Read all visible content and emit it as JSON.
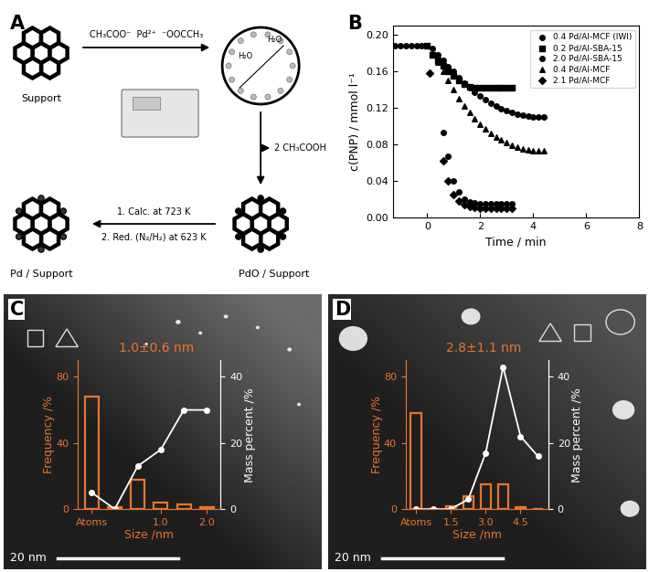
{
  "panel_labels": [
    "A",
    "B",
    "C",
    "D"
  ],
  "diagram": {
    "nodes": [
      "Support",
      "PdO / Support",
      "Pd / Support"
    ],
    "precursor": "CH₃COO⁻  Pd²⁺  ⁻OOCCH₃",
    "water": [
      "H₂O",
      "H₂O"
    ],
    "byproduct": "2 CH₃COOH",
    "steps": [
      "1. Calc. at 723 K",
      "2. Red. (N₂/H₂) at 623 K"
    ]
  },
  "chart_data": [
    {
      "type": "scatter",
      "x_label": "Time / min",
      "y_label": "c(PNP) / mmol l⁻¹",
      "xlim": [
        -1.3,
        8
      ],
      "xticks": [
        0,
        2,
        4,
        6,
        8
      ],
      "ylim": [
        0,
        0.21
      ],
      "yticks": [
        {
          "value": 0.0,
          "label": "0.00"
        },
        {
          "value": 0.04,
          "label": "0.04"
        },
        {
          "value": 0.08,
          "label": "0.08"
        },
        {
          "value": 0.12,
          "label": "0.12"
        },
        {
          "value": 0.16,
          "label": "0.16"
        },
        {
          "value": 0.2,
          "label": "0.20"
        }
      ],
      "legend": "upper right",
      "series": [
        {
          "name": "0.4 Pd/Al-MCF (IWI)",
          "color": "#000000",
          "marker": "circle",
          "x": [
            -1.2,
            -1.0,
            -0.8,
            -0.6,
            -0.4,
            -0.2,
            0.0,
            0.6,
            0.8,
            1.0,
            1.2,
            1.4,
            1.6,
            1.8,
            2.0,
            2.2,
            2.4,
            2.6,
            2.8,
            3.0,
            3.2
          ],
          "values": [
            0.188,
            0.188,
            0.188,
            0.188,
            0.188,
            0.188,
            0.188,
            0.093,
            0.067,
            0.04,
            0.028,
            0.02,
            0.017,
            0.016,
            0.015,
            0.015,
            0.015,
            0.015,
            0.015,
            0.015,
            0.015
          ]
        },
        {
          "name": "0.2 Pd/Al-SBA-15",
          "color": "#000000",
          "marker": "square",
          "x": [
            0.0,
            0.2,
            0.4,
            0.6,
            0.8,
            1.0,
            1.2,
            1.4,
            1.6,
            1.8,
            2.0,
            2.2,
            2.4,
            2.6,
            2.8,
            3.0,
            3.2
          ],
          "values": [
            0.188,
            0.178,
            0.172,
            0.166,
            0.16,
            0.155,
            0.15,
            0.146,
            0.143,
            0.142,
            0.142,
            0.142,
            0.142,
            0.142,
            0.142,
            0.142,
            0.142
          ]
        },
        {
          "name": "2.0 Pd/Al-SBA-15",
          "color": "#000000",
          "marker": "circle",
          "x": [
            0.2,
            0.4,
            0.6,
            0.8,
            1.0,
            1.2,
            1.4,
            1.6,
            1.8,
            2.0,
            2.2,
            2.4,
            2.6,
            2.8,
            3.0,
            3.2,
            3.4,
            3.6,
            3.8,
            4.0,
            4.2,
            4.4
          ],
          "values": [
            0.185,
            0.178,
            0.172,
            0.165,
            0.16,
            0.153,
            0.147,
            0.142,
            0.137,
            0.133,
            0.129,
            0.125,
            0.122,
            0.119,
            0.117,
            0.115,
            0.113,
            0.112,
            0.111,
            0.11,
            0.11,
            0.11
          ]
        },
        {
          "name": "0.4 Pd/Al-MCF",
          "color": "#000000",
          "marker": "triangle",
          "x": [
            0.4,
            0.6,
            0.8,
            1.0,
            1.2,
            1.4,
            1.6,
            1.8,
            2.0,
            2.2,
            2.4,
            2.6,
            2.8,
            3.0,
            3.2,
            3.4,
            3.6,
            3.8,
            4.0,
            4.2,
            4.4
          ],
          "values": [
            0.17,
            0.16,
            0.15,
            0.14,
            0.13,
            0.122,
            0.115,
            0.108,
            0.102,
            0.097,
            0.092,
            0.088,
            0.085,
            0.082,
            0.079,
            0.077,
            0.075,
            0.074,
            0.073,
            0.073,
            0.073
          ]
        },
        {
          "name": "2.1 Pd/Al-MCF",
          "color": "#000000",
          "marker": "diamond",
          "x": [
            0.1,
            0.6,
            0.8,
            1.0,
            1.2,
            1.4,
            1.6,
            1.8,
            2.0,
            2.2,
            2.4,
            2.6,
            2.8,
            3.0,
            3.2
          ],
          "values": [
            0.158,
            0.062,
            0.04,
            0.025,
            0.018,
            0.014,
            0.012,
            0.011,
            0.01,
            0.01,
            0.01,
            0.01,
            0.01,
            0.01,
            0.01
          ]
        }
      ]
    },
    {
      "type": "bar",
      "x_label": "Size /nm",
      "y_label": "Frequency /%",
      "y2_label": "Mass percent /%",
      "annotations": [
        "1.0±0.6 nm"
      ],
      "scale_bar_label": "20 nm",
      "categories": [
        "Atoms",
        null,
        null,
        "1.0",
        null,
        "2.0"
      ],
      "ylim": [
        0,
        90
      ],
      "yticks": [
        0,
        40,
        80
      ],
      "y2lim": [
        0,
        45
      ],
      "y2ticks": [
        0,
        20,
        40
      ],
      "series": [
        {
          "type": "bar",
          "color": "#e8742c",
          "values": [
            68,
            1,
            18,
            4,
            3,
            1
          ]
        },
        {
          "type": "line",
          "axis": "y2",
          "color": "#ffffff",
          "marker": "circle",
          "values": [
            5,
            0,
            13,
            18,
            30,
            30
          ]
        }
      ]
    },
    {
      "type": "bar",
      "x_label": "Size /nm",
      "y_label": "Frequency /%",
      "y2_label": "Mass percent /%",
      "annotations": [
        "2.8±1.1 nm"
      ],
      "scale_bar_label": "20 nm",
      "categories": [
        "Atoms",
        null,
        "1.5",
        null,
        "3.0",
        null,
        "4.5",
        null
      ],
      "ylim": [
        0,
        90
      ],
      "yticks": [
        0,
        40,
        80
      ],
      "y2lim": [
        0,
        45
      ],
      "y2ticks": [
        0,
        20,
        40
      ],
      "series": [
        {
          "type": "bar",
          "color": "#e8742c",
          "values": [
            58,
            0,
            2,
            8,
            15,
            15,
            1,
            0
          ]
        },
        {
          "type": "line",
          "axis": "y2",
          "color": "#ffffff",
          "marker": "circle",
          "values": [
            0,
            0,
            0,
            3,
            17,
            43,
            22,
            16
          ]
        }
      ]
    }
  ]
}
